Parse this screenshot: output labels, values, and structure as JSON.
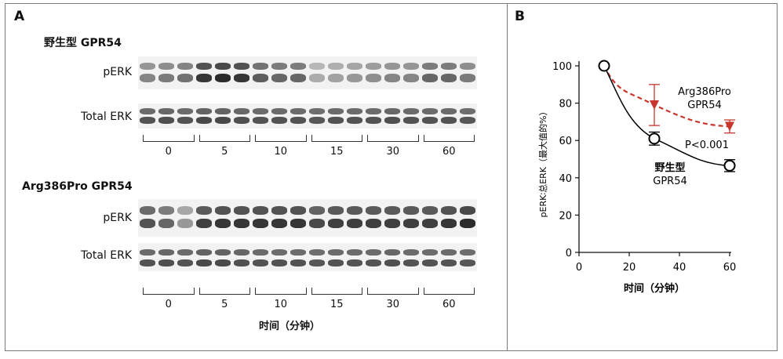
{
  "panel_a": {
    "letter": "A",
    "blots": [
      {
        "title": "野生型 GPR54",
        "rows": [
          "pERK",
          "Total ERK"
        ],
        "time_labels": [
          "0",
          "5",
          "10",
          "15",
          "30",
          "60"
        ]
      },
      {
        "title": "Arg386Pro GPR54",
        "rows": [
          "pERK",
          "Total ERK"
        ],
        "time_labels": [
          "0",
          "5",
          "10",
          "15",
          "30",
          "60"
        ]
      }
    ],
    "x_caption": "时间（分钟）"
  },
  "panel_b": {
    "letter": "B"
  },
  "chart_data": {
    "type": "line",
    "xlabel": "时间（分钟）",
    "ylabel": "pERK∶总ERK（最大值的%）",
    "xlim": [
      0,
      60
    ],
    "ylim": [
      0,
      100
    ],
    "xticks": [
      "0",
      "20",
      "40",
      "60"
    ],
    "yticks": [
      "0",
      "20",
      "40",
      "60",
      "80",
      "100"
    ],
    "series": [
      {
        "name": "野生型 GPR54",
        "label_lines": [
          "野生型",
          "GPR54"
        ],
        "x": [
          10,
          30,
          60
        ],
        "y": [
          100,
          61,
          46.5
        ],
        "err": [
          0,
          3.5,
          3.2
        ],
        "color": "#000000",
        "marker": "open-circle",
        "line": "solid"
      },
      {
        "name": "Arg386Pro GPR54",
        "label_lines": [
          "Arg386Pro",
          "GPR54"
        ],
        "x": [
          10,
          30,
          60
        ],
        "y": [
          100,
          79,
          67.5
        ],
        "err": [
          0,
          11,
          3.5
        ],
        "color": "#c8372d",
        "marker": "filled-triangle-down",
        "line": "dashed"
      }
    ],
    "annotation": "P<0.001"
  }
}
